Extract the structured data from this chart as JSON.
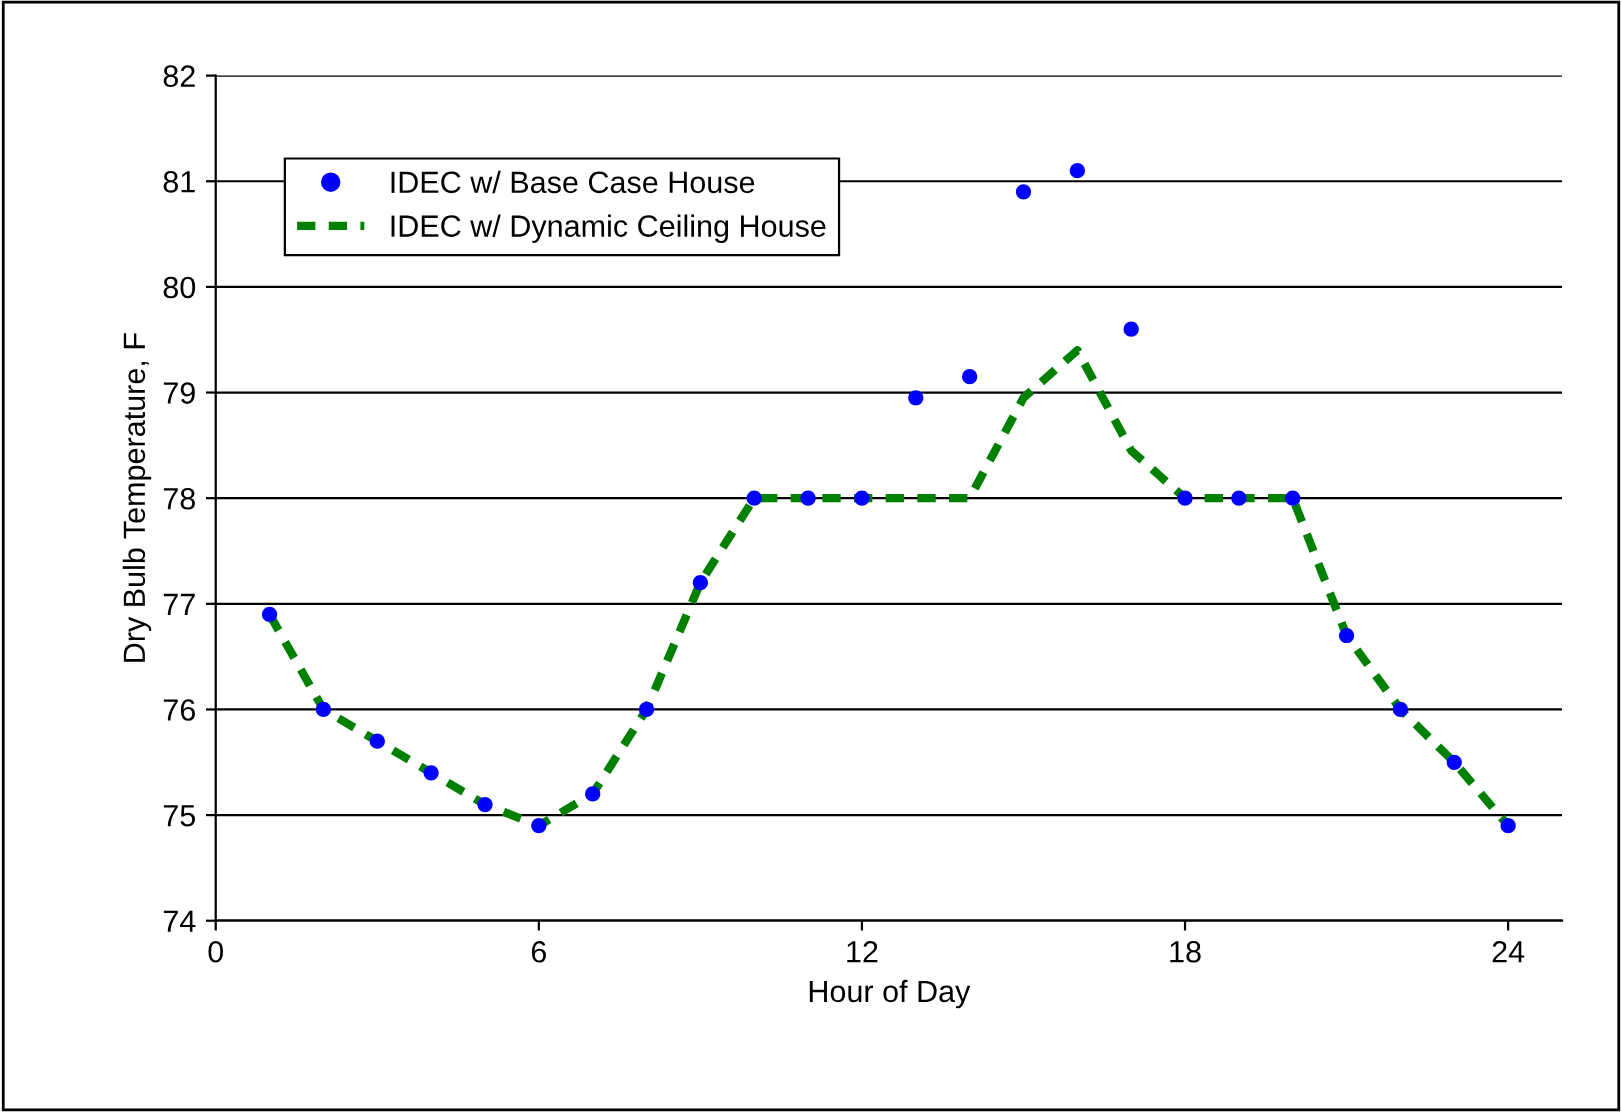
{
  "chart_data": {
    "type": "line",
    "xlabel": "Hour of Day",
    "ylabel": "Dry Bulb Temperature, F",
    "x": [
      1,
      2,
      3,
      4,
      5,
      6,
      7,
      8,
      9,
      10,
      11,
      12,
      13,
      14,
      15,
      16,
      17,
      18,
      19,
      20,
      21,
      22,
      23,
      24
    ],
    "series": [
      {
        "name": "IDEC w/ Base Case House",
        "type": "scatter",
        "color": "#0000ff",
        "marker": "circle",
        "values": [
          76.9,
          76.0,
          75.7,
          75.4,
          75.1,
          74.9,
          75.2,
          76.0,
          77.2,
          78.0,
          78.0,
          78.0,
          78.95,
          79.15,
          80.9,
          81.1,
          79.6,
          78.0,
          78.0,
          78.0,
          76.7,
          76.0,
          75.5,
          74.9
        ]
      },
      {
        "name": "IDEC w/ Dynamic Ceiling House",
        "color": "#008000",
        "line_style": "dashed",
        "marker": "none",
        "values": [
          76.9,
          76.0,
          75.7,
          75.4,
          75.1,
          74.9,
          75.2,
          76.0,
          77.2,
          78.0,
          78.0,
          78.0,
          78.0,
          78.0,
          78.95,
          79.4,
          78.45,
          78.0,
          78.0,
          78.0,
          76.7,
          76.0,
          75.5,
          74.9
        ]
      }
    ],
    "xlim": [
      0,
      25
    ],
    "xticks": [
      0,
      6,
      12,
      18,
      24
    ],
    "ylim": [
      74,
      82
    ],
    "yticks": [
      74,
      75,
      76,
      77,
      78,
      79,
      80,
      81,
      82
    ],
    "grid": "y",
    "legend": "top left"
  }
}
